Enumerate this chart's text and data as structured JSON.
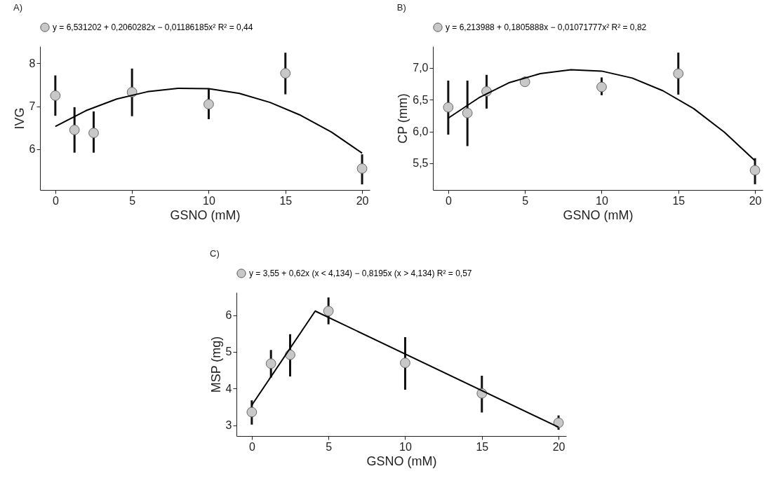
{
  "chart_data": [
    {
      "type": "scatter",
      "title": "A)",
      "xlabel": "GSNO (mM)",
      "ylabel": "IVG",
      "xlim": [
        -1,
        20.5
      ],
      "xticks": [
        0,
        5,
        10,
        15,
        20
      ],
      "ylim": [
        5.05,
        8.4
      ],
      "yticks": [
        6,
        7,
        8
      ],
      "grid": false,
      "legend": "top",
      "series": [
        {
          "name": "y = 6,531202 + 0,2060282x − 0,01186185x²    R² = 0,44",
          "marker": "circle",
          "color": "#c8c8c8",
          "x": [
            0,
            1.25,
            2.5,
            5,
            10,
            15,
            20
          ],
          "values": [
            7.25,
            6.45,
            6.38,
            7.33,
            7.05,
            7.77,
            5.55
          ],
          "errors": [
            [
              6.78,
              7.72
            ],
            [
              5.92,
              6.98
            ],
            [
              5.92,
              6.88
            ],
            [
              6.77,
              7.88
            ],
            [
              6.7,
              7.4
            ],
            [
              7.28,
              8.25
            ],
            [
              5.18,
              5.88
            ]
          ]
        },
        {
          "type": "line",
          "color": "#000000",
          "x": [
            0,
            2,
            4,
            6,
            8,
            10,
            12,
            14,
            16,
            18,
            20
          ],
          "values": [
            6.53,
            6.9,
            7.17,
            7.34,
            7.42,
            7.41,
            7.3,
            7.09,
            6.79,
            6.4,
            5.91
          ]
        }
      ]
    },
    {
      "type": "scatter",
      "title": "B)",
      "xlabel": "GSNO (mM)",
      "ylabel": "CP (mm)",
      "xlim": [
        -1,
        20.5
      ],
      "xticks": [
        0,
        5,
        10,
        15,
        20
      ],
      "ylim": [
        5.08,
        7.34
      ],
      "yticks": [
        {
          "value": 5.5,
          "label": "5,5"
        },
        {
          "value": 6,
          "label": "6,0"
        },
        {
          "value": 6.5,
          "label": "6,5"
        },
        {
          "value": 7,
          "label": "7,0"
        }
      ],
      "grid": false,
      "legend": "top",
      "series": [
        {
          "name": "y = 6,213988 + 0,1805888x − 0,01071777x²    R² = 0,82",
          "marker": "circle",
          "color": "#c8c8c8",
          "x": [
            0,
            1.25,
            2.5,
            5,
            10,
            15,
            20
          ],
          "values": [
            6.38,
            6.29,
            6.63,
            6.78,
            6.7,
            6.91,
            5.39
          ],
          "errors": [
            [
              5.95,
              6.8
            ],
            [
              5.77,
              6.8
            ],
            [
              6.36,
              6.89
            ],
            [
              6.72,
              6.86
            ],
            [
              6.57,
              6.85
            ],
            [
              6.58,
              7.24
            ],
            [
              5.17,
              5.58
            ]
          ]
        },
        {
          "type": "line",
          "color": "#000000",
          "x": [
            0,
            2,
            4,
            6,
            8,
            10,
            12,
            14,
            16,
            18,
            20
          ],
          "values": [
            6.21,
            6.53,
            6.77,
            6.91,
            6.97,
            6.95,
            6.84,
            6.64,
            6.36,
            5.99,
            5.54
          ]
        }
      ]
    },
    {
      "type": "scatter",
      "title": "C)",
      "xlabel": "GSNO (mM)",
      "ylabel": "MSP (mg)",
      "xlim": [
        -1,
        20.5
      ],
      "xticks": [
        0,
        5,
        10,
        15,
        20
      ],
      "ylim": [
        2.71,
        6.62
      ],
      "yticks": [
        3,
        4,
        5,
        6
      ],
      "grid": false,
      "legend": "top",
      "series": [
        {
          "name": "y = 3,55 + 0,62x (x < 4,134) − 0,8195x (x > 4,134)   R² = 0,57",
          "marker": "circle",
          "color": "#c8c8c8",
          "x": [
            0,
            1.25,
            2.5,
            5,
            10,
            15,
            20
          ],
          "values": [
            3.36,
            4.68,
            4.92,
            6.11,
            4.7,
            3.87,
            3.07
          ],
          "errors": [
            [
              3.02,
              3.68
            ],
            [
              4.3,
              5.05
            ],
            [
              4.33,
              5.48
            ],
            [
              5.75,
              6.48
            ],
            [
              3.97,
              5.4
            ],
            [
              3.35,
              4.35
            ],
            [
              2.88,
              3.27
            ]
          ]
        },
        {
          "type": "line",
          "color": "#000000",
          "x": [
            0,
            4.134,
            20
          ],
          "values": [
            3.55,
            6.11,
            2.95
          ]
        }
      ]
    }
  ]
}
